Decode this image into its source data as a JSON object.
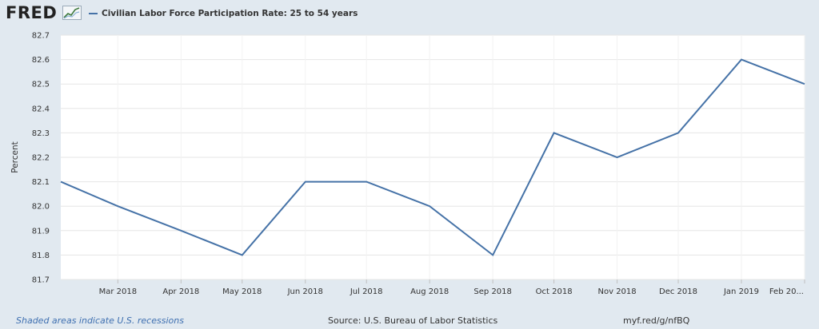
{
  "header": {
    "logo_text": "FRED",
    "logo_icon": "trend-chart-icon",
    "legend_label": "Civilian Labor Force Participation Rate: 25 to 54 years",
    "series_color": "#4572a7"
  },
  "footer": {
    "recessions_note": "Shaded areas indicate U.S. recessions",
    "source": "Source: U.S. Bureau of Labor Statistics",
    "short_url": "myf.red/g/nfBQ"
  },
  "chart_data": {
    "type": "line",
    "title": "",
    "xlabel": "",
    "ylabel": "Percent",
    "ylim": [
      81.7,
      82.7
    ],
    "yticks": [
      81.7,
      81.8,
      81.9,
      82.0,
      82.1,
      82.2,
      82.3,
      82.4,
      82.5,
      82.6,
      82.7
    ],
    "ytick_labels": [
      "81.7",
      "81.8",
      "81.9",
      "82.0",
      "82.1",
      "82.2",
      "82.3",
      "82.4",
      "82.5",
      "82.6",
      "82.7"
    ],
    "xlim": [
      "2018-02-01",
      "2019-02-01"
    ],
    "xticks": [
      "2018-03-01",
      "2018-04-01",
      "2018-05-01",
      "2018-06-01",
      "2018-07-01",
      "2018-08-01",
      "2018-09-01",
      "2018-10-01",
      "2018-11-01",
      "2018-12-01",
      "2019-01-01",
      "2019-02-01"
    ],
    "xtick_labels": [
      "Mar 2018",
      "Apr 2018",
      "May 2018",
      "Jun 2018",
      "Jul 2018",
      "Aug 2018",
      "Sep 2018",
      "Oct 2018",
      "Nov 2018",
      "Dec 2018",
      "Jan 2019",
      "Feb 20..."
    ],
    "grid": true,
    "legend_position": "top-left",
    "series": [
      {
        "name": "Civilian Labor Force Participation Rate: 25 to 54 years",
        "color": "#4572a7",
        "x": [
          "2018-02-01",
          "2018-03-01",
          "2018-04-01",
          "2018-05-01",
          "2018-06-01",
          "2018-07-01",
          "2018-08-01",
          "2018-09-01",
          "2018-10-01",
          "2018-11-01",
          "2018-12-01",
          "2019-01-01",
          "2019-02-01"
        ],
        "values": [
          82.1,
          82.0,
          81.9,
          81.8,
          82.1,
          82.1,
          82.0,
          81.8,
          82.3,
          82.2,
          82.3,
          82.6,
          82.5
        ]
      }
    ]
  }
}
